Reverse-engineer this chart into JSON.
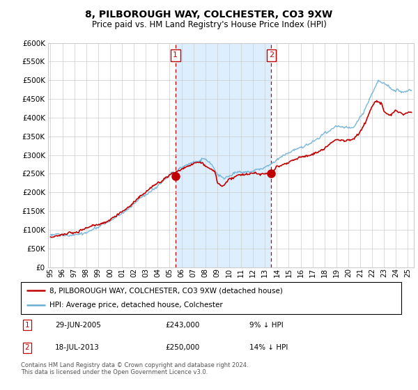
{
  "title": "8, PILBOROUGH WAY, COLCHESTER, CO3 9XW",
  "subtitle": "Price paid vs. HM Land Registry's House Price Index (HPI)",
  "ylim": [
    0,
    600000
  ],
  "xlim_start": 1994.8,
  "xlim_end": 2025.5,
  "sale1_date": 2005.49,
  "sale1_price": 243000,
  "sale1_label": "1",
  "sale2_date": 2013.54,
  "sale2_price": 250000,
  "sale2_label": "2",
  "legend_line1": "8, PILBOROUGH WAY, COLCHESTER, CO3 9XW (detached house)",
  "legend_line2": "HPI: Average price, detached house, Colchester",
  "info1_num": "1",
  "info1_date": "29-JUN-2005",
  "info1_price": "£243,000",
  "info1_hpi": "9% ↓ HPI",
  "info2_num": "2",
  "info2_date": "18-JUL-2013",
  "info2_price": "£250,000",
  "info2_hpi": "14% ↓ HPI",
  "footer": "Contains HM Land Registry data © Crown copyright and database right 2024.\nThis data is licensed under the Open Government Licence v3.0.",
  "hpi_color": "#6aaed6",
  "price_color": "#C00000",
  "shade_color": "#ddeeff",
  "grid_color": "#cccccc",
  "bg_color": "#ffffff"
}
